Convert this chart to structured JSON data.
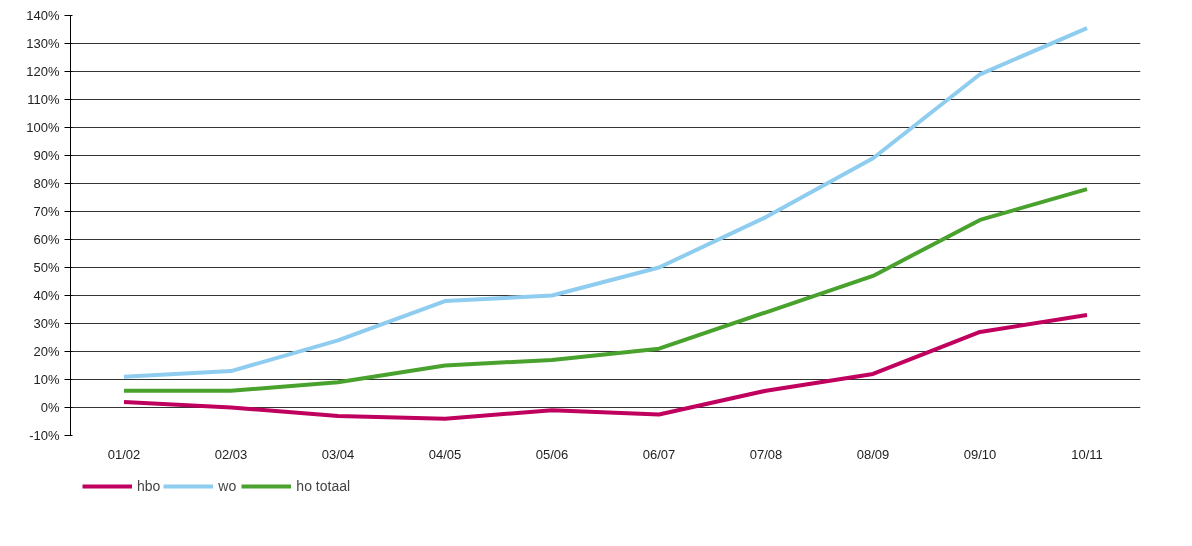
{
  "chart_data": {
    "type": "line",
    "categories": [
      "01/02",
      "02/03",
      "03/04",
      "04/05",
      "05/06",
      "06/07",
      "07/08",
      "08/09",
      "09/10",
      "10/11"
    ],
    "series": [
      {
        "name": "hbo",
        "color": "#c0005e",
        "values": [
          2,
          0,
          -3,
          -4,
          -1,
          -2.5,
          6,
          12,
          27,
          33
        ]
      },
      {
        "name": "wo",
        "color": "#8ecdef",
        "values": [
          11,
          13,
          24,
          38,
          40,
          50,
          68,
          89,
          119,
          135.5
        ]
      },
      {
        "name": "ho totaal",
        "color": "#4aa22e",
        "values": [
          6,
          6,
          9,
          15,
          17,
          21,
          34,
          47,
          67,
          78
        ]
      }
    ],
    "ylim": [
      -10,
      140
    ],
    "yticks": [
      {
        "value": -10,
        "label": "-10%"
      },
      {
        "value": 0,
        "label": "0%"
      },
      {
        "value": 10,
        "label": "10%"
      },
      {
        "value": 20,
        "label": "20%"
      },
      {
        "value": 30,
        "label": "30%"
      },
      {
        "value": 40,
        "label": "40%"
      },
      {
        "value": 50,
        "label": "50%"
      },
      {
        "value": 60,
        "label": "60%"
      },
      {
        "value": 70,
        "label": "70%"
      },
      {
        "value": 80,
        "label": "80%"
      },
      {
        "value": 90,
        "label": "90%"
      },
      {
        "value": 100,
        "label": "100%"
      },
      {
        "value": 110,
        "label": "110%"
      },
      {
        "value": 120,
        "label": "120%"
      },
      {
        "value": 130,
        "label": "130%"
      },
      {
        "value": 140,
        "label": "140%"
      }
    ],
    "grid": "y",
    "legend": "bottom left",
    "marker": "none",
    "line_style": "solid"
  }
}
